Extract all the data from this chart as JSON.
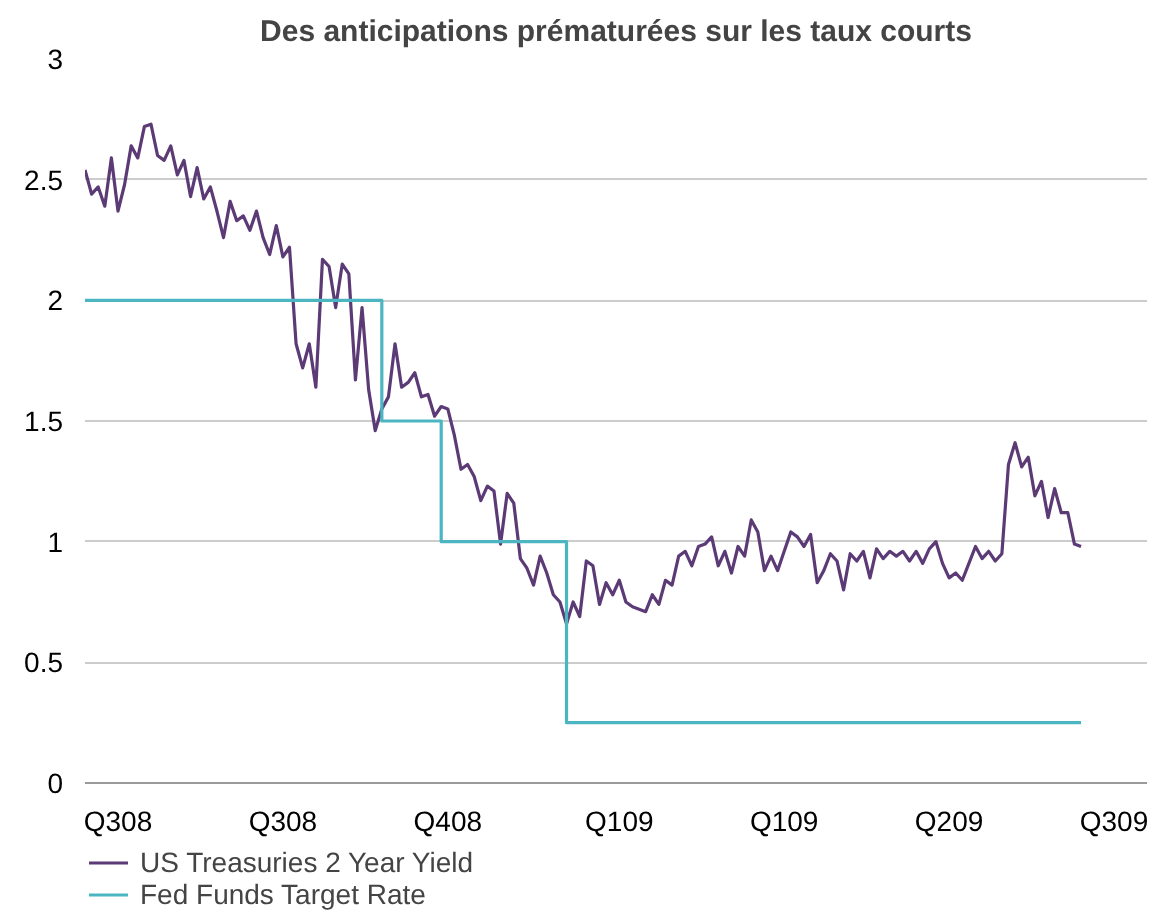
{
  "chart_data": {
    "type": "line",
    "title": "Des anticipations prématurées sur les taux courts",
    "categories": [
      null,
      null,
      null,
      null,
      null,
      "Q308",
      null,
      null,
      null,
      null,
      null,
      null,
      null,
      null,
      null,
      null,
      null,
      null,
      null,
      null,
      null,
      null,
      null,
      null,
      null,
      null,
      null,
      null,
      null,
      null,
      "Q308",
      null,
      null,
      null,
      null,
      null,
      null,
      null,
      null,
      null,
      null,
      null,
      null,
      null,
      null,
      null,
      null,
      null,
      null,
      null,
      null,
      null,
      null,
      null,
      null,
      "Q408",
      null,
      null,
      null,
      null,
      null,
      null,
      null,
      null,
      null,
      null,
      null,
      null,
      null,
      null,
      null,
      null,
      null,
      null,
      null,
      null,
      null,
      null,
      null,
      null,
      null,
      "Q109",
      null,
      null,
      null,
      null,
      null,
      null,
      null,
      null,
      null,
      null,
      null,
      null,
      null,
      null,
      null,
      null,
      null,
      null,
      null,
      null,
      null,
      null,
      null,
      null,
      "Q109",
      null,
      null,
      null,
      null,
      null,
      null,
      null,
      null,
      null,
      null,
      null,
      null,
      null,
      null,
      null,
      null,
      null,
      null,
      null,
      null,
      null,
      null,
      null,
      null,
      "Q209",
      null,
      null,
      null,
      null,
      null,
      null,
      null,
      null,
      null,
      null,
      null,
      null,
      null,
      null,
      null,
      null,
      null,
      null,
      null,
      null,
      null,
      null,
      null,
      null,
      "Q309",
      null,
      null,
      null,
      null,
      null
    ],
    "ylim": [
      0,
      3
    ],
    "yticks": [
      0,
      0.5,
      1,
      1.5,
      2,
      2.5,
      3
    ],
    "grid": "y",
    "legend": "bottom",
    "series": [
      {
        "name": "US Treasuries 2 Year Yield",
        "color": "#5b3a75",
        "values": [
          2.54,
          2.44,
          2.47,
          2.39,
          2.59,
          2.37,
          2.48,
          2.64,
          2.59,
          2.72,
          2.73,
          2.6,
          2.58,
          2.64,
          2.52,
          2.58,
          2.43,
          2.55,
          2.42,
          2.47,
          2.37,
          2.26,
          2.41,
          2.33,
          2.35,
          2.29,
          2.37,
          2.26,
          2.19,
          2.31,
          2.18,
          2.22,
          1.82,
          1.72,
          1.82,
          1.64,
          2.17,
          2.14,
          1.97,
          2.15,
          2.11,
          1.67,
          1.97,
          1.63,
          1.46,
          1.55,
          1.6,
          1.82,
          1.64,
          1.66,
          1.7,
          1.6,
          1.61,
          1.52,
          1.56,
          1.55,
          1.44,
          1.3,
          1.32,
          1.27,
          1.17,
          1.23,
          1.21,
          0.99,
          1.2,
          1.16,
          0.93,
          0.89,
          0.82,
          0.94,
          0.87,
          0.78,
          0.75,
          0.66,
          0.75,
          0.69,
          0.92,
          0.9,
          0.74,
          0.83,
          0.78,
          0.84,
          0.75,
          0.73,
          0.72,
          0.71,
          0.78,
          0.74,
          0.84,
          0.82,
          0.94,
          0.96,
          0.9,
          0.98,
          0.99,
          1.02,
          0.9,
          0.96,
          0.87,
          0.98,
          0.94,
          1.09,
          1.04,
          0.88,
          0.94,
          0.88,
          0.96,
          1.04,
          1.02,
          0.98,
          1.03,
          0.83,
          0.88,
          0.95,
          0.92,
          0.8,
          0.95,
          0.92,
          0.96,
          0.85,
          0.97,
          0.93,
          0.96,
          0.94,
          0.96,
          0.92,
          0.96,
          0.91,
          0.97,
          1.0,
          0.91,
          0.85,
          0.87,
          0.84,
          0.91,
          0.98,
          0.93,
          0.96,
          0.92,
          0.95,
          1.32,
          1.41,
          1.31,
          1.35,
          1.19,
          1.25,
          1.1,
          1.22,
          1.12,
          1.12,
          0.99,
          0.98,
          null,
          null,
          null,
          null,
          null,
          null,
          null,
          null,
          null,
          null
        ]
      },
      {
        "name": "Fed Funds Target Rate",
        "type": "step",
        "color": "#4bb5c1",
        "values": [
          2,
          2,
          2,
          2,
          2,
          2,
          2,
          2,
          2,
          2,
          2,
          2,
          2,
          2,
          2,
          2,
          2,
          2,
          2,
          2,
          2,
          2,
          2,
          2,
          2,
          2,
          2,
          2,
          2,
          2,
          2,
          2,
          2,
          2,
          2,
          2,
          2,
          2,
          2,
          2,
          2,
          2,
          2,
          2,
          2,
          1.5,
          1.5,
          1.5,
          1.5,
          1.5,
          1.5,
          1.5,
          1.5,
          1.5,
          1,
          1,
          1,
          1,
          1,
          1,
          1,
          1,
          1,
          1,
          1,
          1,
          1,
          1,
          1,
          1,
          1,
          1,
          1,
          0.25,
          0.25,
          0.25,
          0.25,
          0.25,
          0.25,
          0.25,
          0.25,
          0.25,
          0.25,
          0.25,
          0.25,
          0.25,
          0.25,
          0.25,
          0.25,
          0.25,
          0.25,
          0.25,
          0.25,
          0.25,
          0.25,
          0.25,
          0.25,
          0.25,
          0.25,
          0.25,
          0.25,
          0.25,
          0.25,
          0.25,
          0.25,
          0.25,
          0.25,
          0.25,
          0.25,
          0.25,
          0.25,
          0.25,
          0.25,
          0.25,
          0.25,
          0.25,
          0.25,
          0.25,
          0.25,
          0.25,
          0.25,
          0.25,
          0.25,
          0.25,
          0.25,
          0.25,
          0.25,
          0.25,
          0.25,
          0.25,
          0.25,
          0.25,
          0.25,
          0.25,
          0.25,
          0.25,
          0.25,
          0.25,
          0.25,
          0.25,
          0.25,
          0.25,
          0.25,
          0.25,
          0.25,
          0.25,
          0.25,
          0.25,
          0.25,
          0.25,
          0.25,
          0.25,
          null,
          null,
          null,
          null,
          null,
          null,
          null,
          null,
          null,
          null
        ]
      }
    ]
  }
}
